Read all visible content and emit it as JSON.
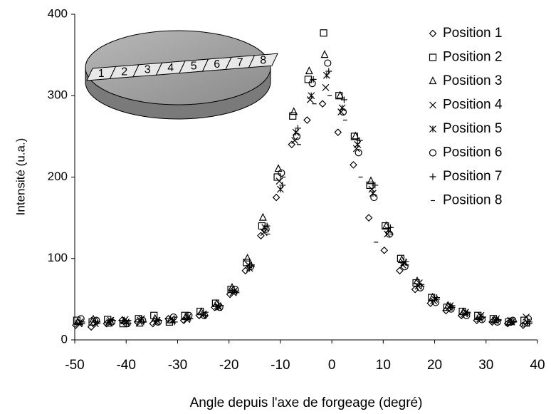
{
  "chart_data": {
    "type": "scatter",
    "xlabel": "Angle depuis l'axe de forgeage (degré)",
    "ylabel": "Intensité (u.a.)",
    "xlim": [
      -50,
      40
    ],
    "xticks": [
      -50,
      -40,
      -30,
      -20,
      -10,
      0,
      10,
      20,
      30,
      40
    ],
    "ylim": [
      0,
      400
    ],
    "yticks": [
      0,
      100,
      200,
      300,
      400
    ],
    "grid": false,
    "legend": "upper right",
    "inset_labels": [
      "1",
      "2",
      "3",
      "4",
      "5",
      "6",
      "7",
      "8"
    ],
    "series": [
      {
        "name": "Position 1",
        "marker": "diamond",
        "color": "#000000",
        "x": [
          -49.8,
          -46.8,
          -43.8,
          -40.8,
          -37.8,
          -34.8,
          -31.8,
          -28.8,
          -25.8,
          -22.8,
          -19.8,
          -16.8,
          -13.8,
          -10.8,
          -7.8,
          -4.8,
          -1.8,
          1.2,
          4.2,
          7.2,
          10.2,
          13.2,
          16.2,
          19.2,
          22.2,
          25.2,
          28.2,
          31.2,
          34.2,
          37.2
        ],
        "values": [
          18,
          16,
          20,
          24,
          22,
          20,
          26,
          24,
          30,
          40,
          56,
          85,
          128,
          175,
          240,
          270,
          290,
          255,
          215,
          150,
          110,
          85,
          62,
          45,
          36,
          30,
          24,
          22,
          20,
          18
        ]
      },
      {
        "name": "Position 2",
        "marker": "square",
        "color": "#000000",
        "x": [
          -49.6,
          -46.6,
          -43.6,
          -40.6,
          -37.6,
          -34.6,
          -31.6,
          -28.6,
          -25.6,
          -22.6,
          -19.6,
          -16.6,
          -13.6,
          -10.6,
          -7.6,
          -4.6,
          -1.6,
          1.4,
          4.4,
          7.4,
          10.4,
          13.4,
          16.4,
          19.4,
          22.4,
          25.4,
          28.4,
          31.4,
          34.4,
          37.4
        ],
        "values": [
          24,
          22,
          25,
          20,
          26,
          30,
          22,
          30,
          35,
          45,
          62,
          95,
          140,
          200,
          275,
          320,
          377,
          300,
          250,
          190,
          140,
          100,
          70,
          52,
          40,
          35,
          30,
          26,
          22,
          24
        ]
      },
      {
        "name": "Position 3",
        "marker": "triangle",
        "color": "#000000",
        "x": [
          -49.4,
          -46.4,
          -43.4,
          -40.4,
          -37.4,
          -34.4,
          -31.4,
          -28.4,
          -25.4,
          -22.4,
          -19.4,
          -16.4,
          -13.4,
          -10.4,
          -7.4,
          -4.4,
          -1.4,
          1.6,
          4.6,
          7.6,
          10.6,
          13.6,
          16.6,
          19.6,
          22.6,
          25.6,
          28.6,
          31.6,
          34.6,
          37.6
        ],
        "values": [
          22,
          25,
          20,
          23,
          20,
          26,
          24,
          28,
          34,
          44,
          64,
          100,
          150,
          210,
          280,
          330,
          350,
          300,
          250,
          195,
          140,
          98,
          72,
          52,
          42,
          34,
          28,
          24,
          22,
          20
        ]
      },
      {
        "name": "Position 4",
        "marker": "x",
        "color": "#000000",
        "x": [
          -49.2,
          -46.2,
          -43.2,
          -40.2,
          -37.2,
          -34.2,
          -31.2,
          -28.2,
          -25.2,
          -22.2,
          -19.2,
          -16.2,
          -13.2,
          -10.2,
          -7.2,
          -4.2,
          -1.2,
          1.8,
          4.8,
          7.8,
          10.8,
          13.8,
          16.8,
          19.8,
          22.8,
          25.8,
          28.8,
          31.8,
          34.8,
          37.8
        ],
        "values": [
          20,
          24,
          22,
          25,
          24,
          22,
          26,
          25,
          30,
          42,
          58,
          92,
          132,
          195,
          245,
          295,
          310,
          280,
          235,
          185,
          130,
          92,
          66,
          48,
          40,
          32,
          26,
          24,
          24,
          28
        ]
      },
      {
        "name": "Position 5",
        "marker": "asterisk",
        "color": "#000000",
        "x": [
          -49.0,
          -46.0,
          -43.0,
          -40.0,
          -37.0,
          -34.0,
          -31.0,
          -28.0,
          -25.0,
          -22.0,
          -19.0,
          -16.0,
          -13.0,
          -10.0,
          -7.0,
          -4.0,
          -1.0,
          2.0,
          5.0,
          8.0,
          11.0,
          14.0,
          17.0,
          20.0,
          23.0,
          26.0,
          29.0,
          32.0,
          35.0,
          38.0
        ],
        "values": [
          22,
          20,
          24,
          22,
          26,
          24,
          24,
          28,
          32,
          40,
          60,
          88,
          138,
          185,
          255,
          300,
          325,
          285,
          240,
          180,
          135,
          95,
          70,
          50,
          42,
          34,
          30,
          26,
          22,
          22
        ]
      },
      {
        "name": "Position 6",
        "marker": "circle",
        "color": "#000000",
        "x": [
          -48.8,
          -45.8,
          -42.8,
          -39.8,
          -36.8,
          -33.8,
          -30.8,
          -27.8,
          -24.8,
          -21.8,
          -18.8,
          -15.8,
          -12.8,
          -9.8,
          -6.8,
          -3.8,
          -0.8,
          2.2,
          5.2,
          8.2,
          11.2,
          14.2,
          17.2,
          20.2,
          23.2,
          26.2,
          29.2,
          32.2,
          35.2,
          38.2
        ],
        "values": [
          26,
          24,
          22,
          20,
          24,
          22,
          28,
          30,
          30,
          40,
          62,
          90,
          136,
          205,
          250,
          315,
          340,
          280,
          230,
          175,
          130,
          90,
          64,
          46,
          38,
          30,
          25,
          22,
          24,
          26
        ]
      },
      {
        "name": "Position 7",
        "marker": "plus",
        "color": "#000000",
        "x": [
          -48.6,
          -45.6,
          -42.6,
          -39.6,
          -36.6,
          -33.6,
          -30.6,
          -27.6,
          -24.6,
          -21.6,
          -18.6,
          -15.6,
          -12.6,
          -9.6,
          -6.6,
          -3.6,
          -0.6,
          2.4,
          5.4,
          8.4,
          11.4,
          14.4,
          17.4,
          20.4,
          23.4,
          26.4,
          29.4,
          32.4,
          35.4,
          38.4
        ],
        "values": [
          20,
          22,
          24,
          20,
          22,
          24,
          22,
          26,
          30,
          42,
          58,
          92,
          140,
          190,
          260,
          320,
          330,
          295,
          245,
          190,
          138,
          96,
          66,
          52,
          40,
          33,
          28,
          24,
          22,
          20
        ]
      },
      {
        "name": "Position 8",
        "marker": "dash",
        "color": "#000000",
        "x": [
          -48.4,
          -45.4,
          -42.4,
          -39.4,
          -36.4,
          -33.4,
          -30.4,
          -27.4,
          -24.4,
          -21.4,
          -18.4,
          -15.4,
          -12.4,
          -9.4,
          -6.4,
          -3.4,
          -0.4,
          2.6,
          5.6,
          8.6,
          11.6,
          14.6,
          17.6,
          20.6,
          23.6,
          26.6,
          29.6,
          32.6,
          35.6,
          38.6
        ],
        "values": [
          22,
          20,
          24,
          24,
          22,
          24,
          28,
          26,
          34,
          42,
          60,
          90,
          130,
          200,
          240,
          290,
          300,
          270,
          200,
          120,
          130,
          92,
          68,
          50,
          42,
          34,
          28,
          25,
          23,
          22
        ]
      }
    ]
  }
}
